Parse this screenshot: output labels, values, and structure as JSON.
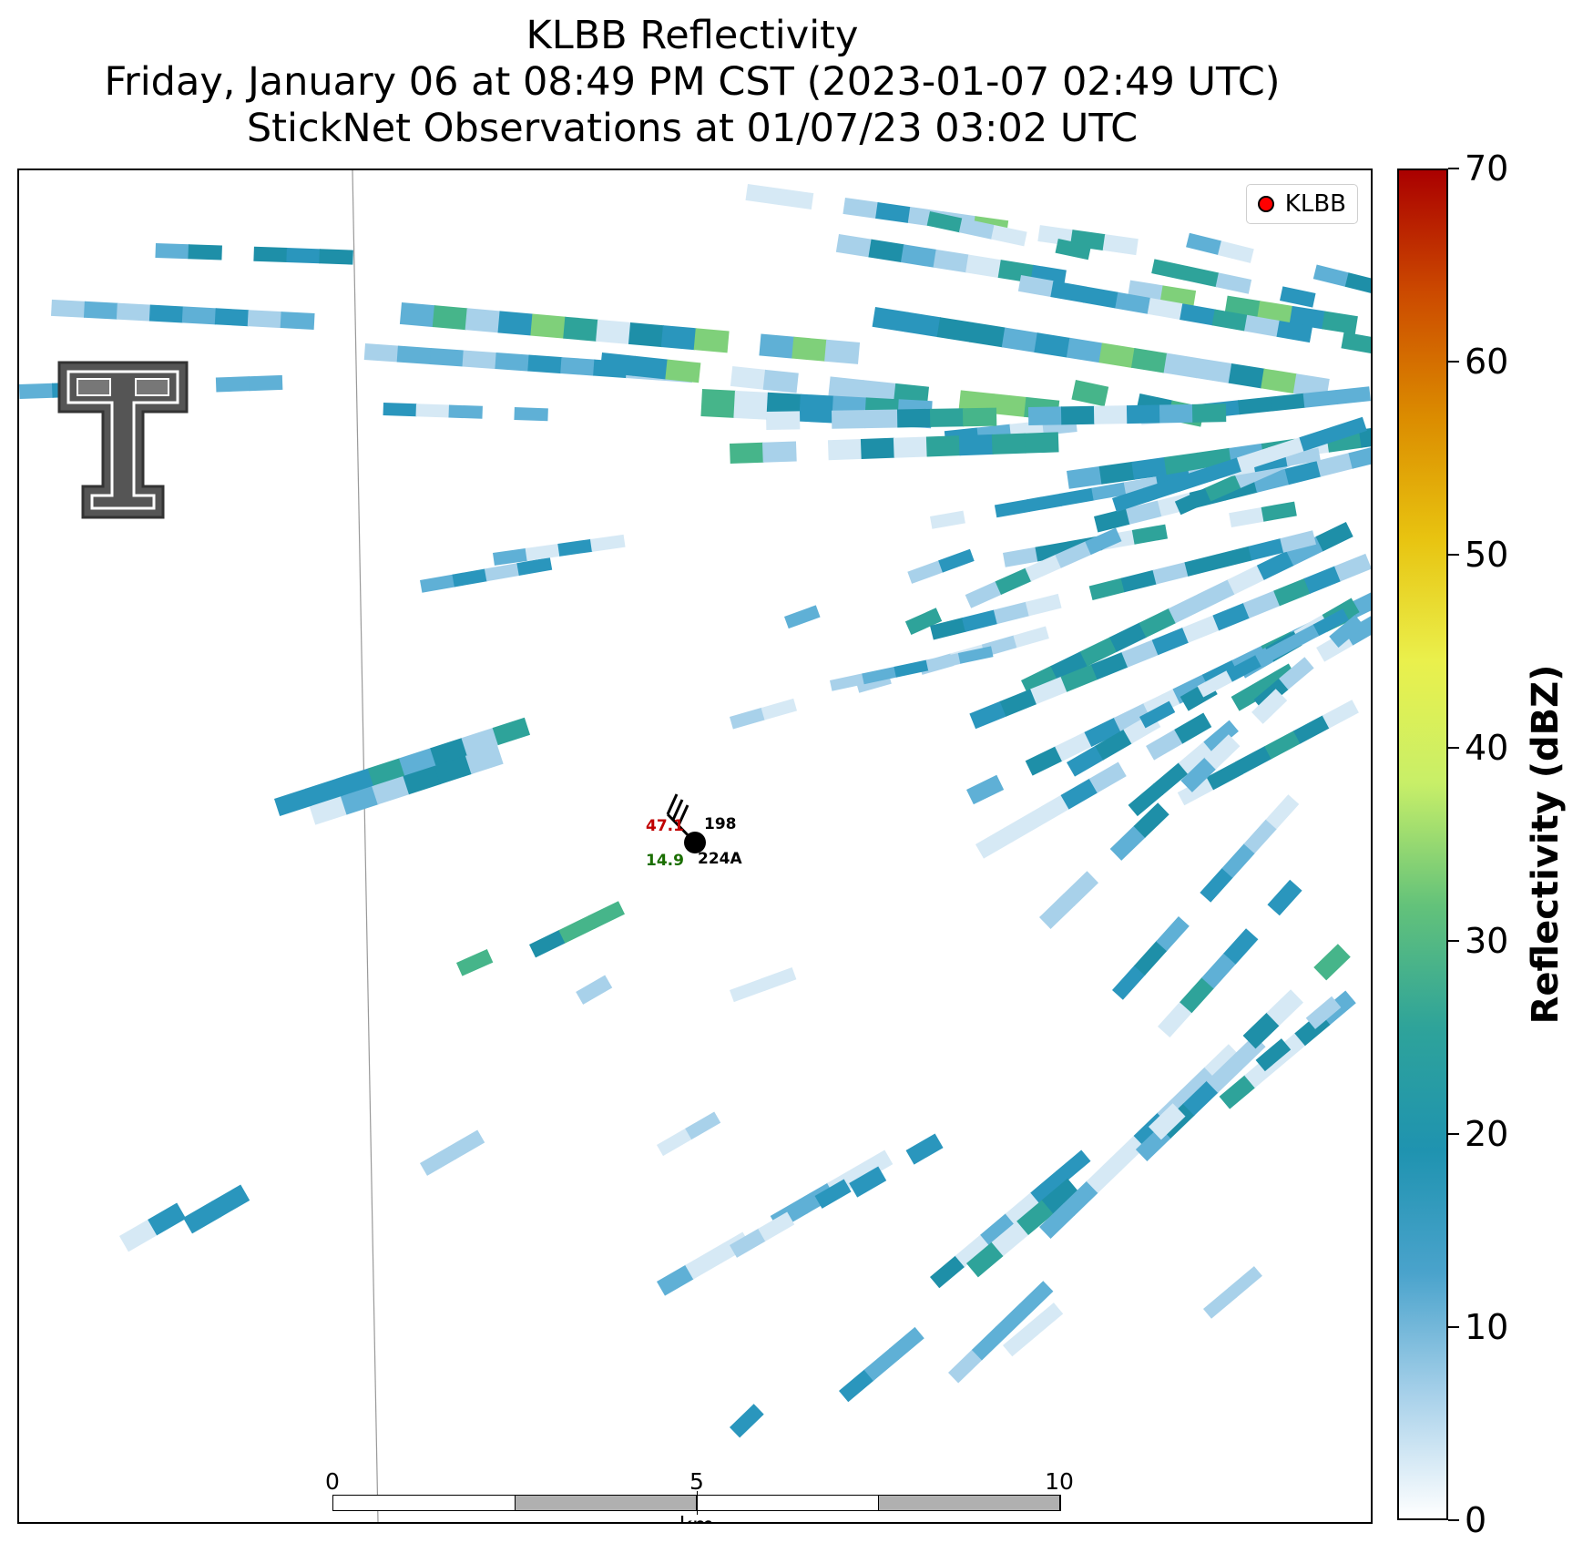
{
  "title": {
    "line1": "KLBB Reflectivity",
    "line2": "Friday, January 06 at 08:49 PM CST (2023-01-07 02:49 UTC)",
    "line3": "StickNet Observations at 01/07/23 03:02 UTC"
  },
  "legend": {
    "label": "KLBB",
    "marker_color": "#ff0000"
  },
  "logo": {
    "name": "texas-tech-double-t-logo"
  },
  "station": {
    "id": "224A",
    "value_top": "198",
    "temperature": "47.1",
    "dewpoint": "14.9",
    "temperature_color": "#c00000",
    "dewpoint_color": "#1a6e00"
  },
  "scale_bar": {
    "labels": [
      "0",
      "5",
      "10"
    ],
    "unit": "km"
  },
  "colorbar": {
    "title": "Reflectivity (dBZ)",
    "min": 0,
    "max": 70,
    "ticks": [
      "0",
      "10",
      "20",
      "30",
      "40",
      "50",
      "60",
      "70"
    ],
    "colors": [
      "#ffffff",
      "#a8d1ea",
      "#4aa3cc",
      "#1f93b0",
      "#2ea39a",
      "#63c27a",
      "#c8ef68",
      "#eaf04c",
      "#e8c310",
      "#db8b00",
      "#cc4a00",
      "#aa0000"
    ]
  }
}
